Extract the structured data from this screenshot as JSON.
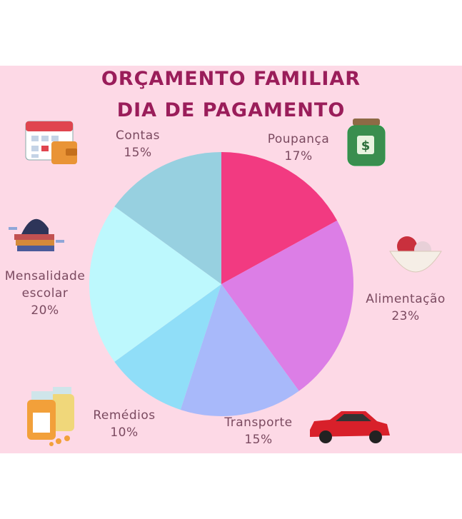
{
  "chart_data": {
    "type": "pie",
    "title": "ORÇAMENTO FAMILIAR",
    "subtitle": "DIA DE PAGAMENTO",
    "categories": [
      "Poupança",
      "Alimentação",
      "Transporte",
      "Remédios",
      "Mensalidade escolar",
      "Contas"
    ],
    "values": [
      17,
      23,
      15,
      10,
      20,
      15
    ],
    "value_labels": [
      "17%",
      "23%",
      "15%",
      "10%",
      "20%",
      "15%"
    ],
    "colors": [
      "#f23a81",
      "#dc7ee6",
      "#a8b9fa",
      "#90def8",
      "#bdf8fd",
      "#97d0e0"
    ]
  }
}
